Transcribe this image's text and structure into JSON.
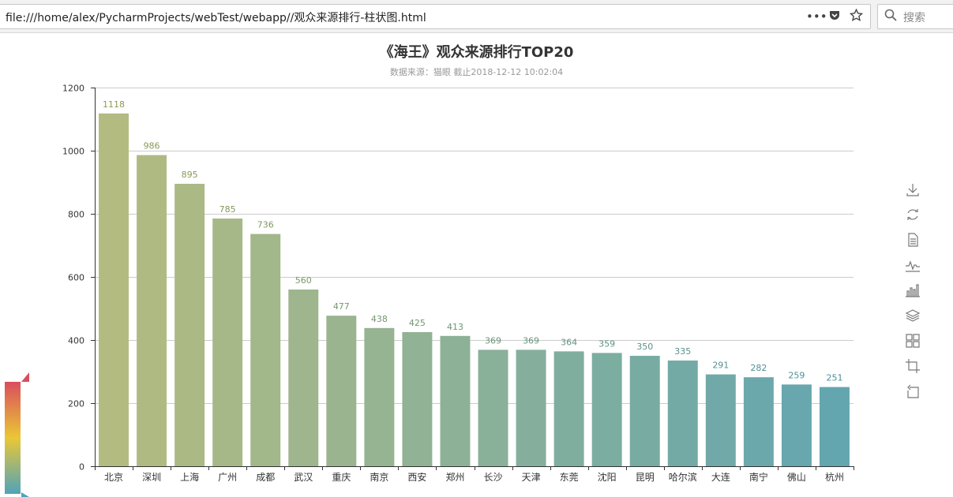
{
  "browser": {
    "url": "file:///home/alex/PycharmProjects/webTest/webapp//观众来源排行-柱状图.html",
    "menu_icon": "ellipsis-icon",
    "pocket_icon": "pocket-icon",
    "bookmark_icon": "star-icon",
    "search_placeholder": "搜索"
  },
  "colors": {
    "grad_start": "#b3bb80",
    "grad_end": "#63a6b0",
    "label_start": "#8c9a52",
    "label_end": "#4a8f9a",
    "visualmap_top": "#d94e5d",
    "visualmap_mid": "#eac736",
    "visualmap_bottom": "#50a3ba"
  },
  "toolbox": [
    "download-icon",
    "refresh-icon",
    "data-view-icon",
    "line-chart-icon",
    "bar-chart-icon",
    "stack-icon",
    "tiled-icon",
    "zoom-icon",
    "zoom-reset-icon"
  ],
  "chart_data": {
    "type": "bar",
    "title": "《海王》观众来源排行TOP20",
    "subtitle": "数据来源：猫眼  截止2018-12-12  10:02:04",
    "categories": [
      "北京",
      "深圳",
      "上海",
      "广州",
      "成都",
      "武汉",
      "重庆",
      "南京",
      "西安",
      "郑州",
      "长沙",
      "天津",
      "东莞",
      "沈阳",
      "昆明",
      "哈尔滨",
      "大连",
      "南宁",
      "佛山",
      "杭州"
    ],
    "values": [
      1118,
      986,
      895,
      785,
      736,
      560,
      477,
      438,
      425,
      413,
      369,
      369,
      364,
      359,
      350,
      335,
      291,
      282,
      259,
      251
    ],
    "ylim": [
      0,
      1200
    ],
    "yticks": [
      0,
      200,
      400,
      600,
      800,
      1000,
      1200
    ],
    "grid": true,
    "data_labels": true,
    "xlabel": "",
    "ylabel": ""
  }
}
